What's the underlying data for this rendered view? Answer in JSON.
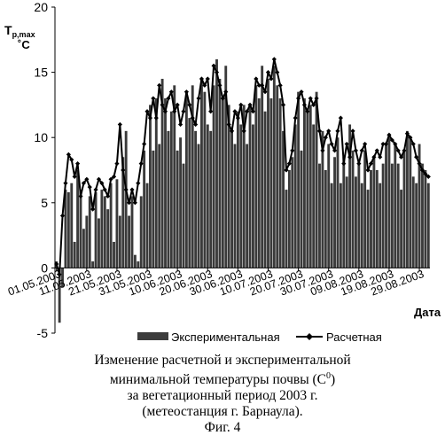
{
  "chart_data": {
    "type": "bar",
    "ylabel_main": "T",
    "ylabel_sub": "p,max",
    "ylabel_unit": "˚C",
    "xlabel": "Дата",
    "ylim": [
      -5,
      20
    ],
    "yticks": [
      -5,
      0,
      5,
      10,
      15,
      20
    ],
    "x_tick_labels": [
      "01.05.2003",
      "11.05.2003",
      "21.05.2003",
      "31.05.2003",
      "10.06.2003",
      "20.06.2003",
      "30.06.2003",
      "10.07.2003",
      "20.07.2003",
      "30.07.2003",
      "09.08.2003",
      "19.08.2003",
      "29.08.2003"
    ],
    "x_tick_days": [
      0,
      10,
      20,
      30,
      40,
      50,
      60,
      70,
      80,
      90,
      100,
      110,
      120
    ],
    "day_count": 124,
    "legend": {
      "placement": "bottom",
      "experimental": "Экспериментальная",
      "calculated": "Расчетная"
    },
    "series": [
      {
        "name": "Экспериментальная",
        "values": [
          0.5,
          -4.2,
          -1.5,
          6.0,
          5.8,
          6.5,
          2.0,
          7.5,
          6.0,
          3.0,
          4.0,
          5.5,
          0.5,
          5.8,
          3.8,
          6.0,
          5.5,
          4.5,
          6.5,
          2.0,
          6.8,
          4.0,
          8.5,
          10.5,
          4.0,
          5.5,
          1.0,
          0.5,
          5.5,
          9.0,
          6.5,
          12.5,
          9.0,
          13.0,
          9.5,
          14.5,
          13.0,
          10.5,
          12.0,
          14.0,
          9.0,
          10.0,
          8.0,
          13.5,
          11.5,
          14.0,
          10.5,
          9.5,
          14.5,
          13.5,
          11.0,
          10.5,
          14.0,
          16.0,
          14.5,
          13.0,
          15.5,
          12.5,
          10.5,
          9.5,
          12.0,
          11.0,
          12.5,
          9.5,
          12.5,
          11.0,
          14.0,
          13.0,
          15.5,
          12.0,
          14.5,
          13.0,
          15.5,
          14.0,
          13.0,
          10.5,
          6.0,
          7.5,
          8.5,
          11.0,
          13.5,
          9.0,
          13.0,
          12.0,
          12.5,
          11.0,
          13.5,
          8.0,
          10.5,
          7.5,
          9.5,
          6.5,
          8.5,
          10.0,
          6.5,
          8.5,
          7.0,
          11.0,
          9.0,
          7.0,
          8.0,
          6.5,
          9.0,
          6.0,
          7.5,
          8.5,
          7.5,
          6.5,
          8.0,
          9.5,
          10.0,
          8.0,
          9.5,
          8.0,
          6.0,
          9.0,
          10.5,
          10.0,
          7.0,
          6.5,
          9.5,
          8.0,
          7.5,
          6.5
        ]
      },
      {
        "name": "Расчетная",
        "values": [
          0.3,
          -0.5,
          4.0,
          6.5,
          8.7,
          8.3,
          7.0,
          8.0,
          5.5,
          6.5,
          6.8,
          6.2,
          4.5,
          6.0,
          6.8,
          6.5,
          6.0,
          5.5,
          6.8,
          7.0,
          8.0,
          11.0,
          7.5,
          6.0,
          5.0,
          6.0,
          5.0,
          6.5,
          8.0,
          9.5,
          12.0,
          11.5,
          13.0,
          11.5,
          14.0,
          12.5,
          12.0,
          13.0,
          13.5,
          12.0,
          12.5,
          11.0,
          12.0,
          13.5,
          12.5,
          11.5,
          11.0,
          13.0,
          14.5,
          14.0,
          14.5,
          12.0,
          15.5,
          15.0,
          14.0,
          13.0,
          13.5,
          11.0,
          10.5,
          12.0,
          11.5,
          12.5,
          10.5,
          12.0,
          12.5,
          12.0,
          14.5,
          14.0,
          14.0,
          13.5,
          15.0,
          14.5,
          16.0,
          15.0,
          14.0,
          12.5,
          7.5,
          8.0,
          9.0,
          11.5,
          13.0,
          13.5,
          12.5,
          12.0,
          13.0,
          12.5,
          13.0,
          10.5,
          9.0,
          10.0,
          10.5,
          9.5,
          9.0,
          10.5,
          11.5,
          8.0,
          9.5,
          8.5,
          10.5,
          9.0,
          8.0,
          9.0,
          9.5,
          7.5,
          8.0,
          8.5,
          9.0,
          8.5,
          9.5,
          9.5,
          10.2,
          9.8,
          9.5,
          9.0,
          8.5,
          9.0,
          10.3,
          10.0,
          9.5,
          8.5,
          8.0,
          7.5,
          7.2,
          7.0
        ]
      }
    ]
  },
  "caption": {
    "line1": "Изменение расчетной и экспериментальной",
    "line2_main": "минимальной температуры почвы (С",
    "line2_sup": "0",
    "line2_end": ")",
    "line3": "за вегетационный период 2003 г.",
    "line4": "(метеостанция г. Барнаула).",
    "figure": "Фиг. 4"
  }
}
